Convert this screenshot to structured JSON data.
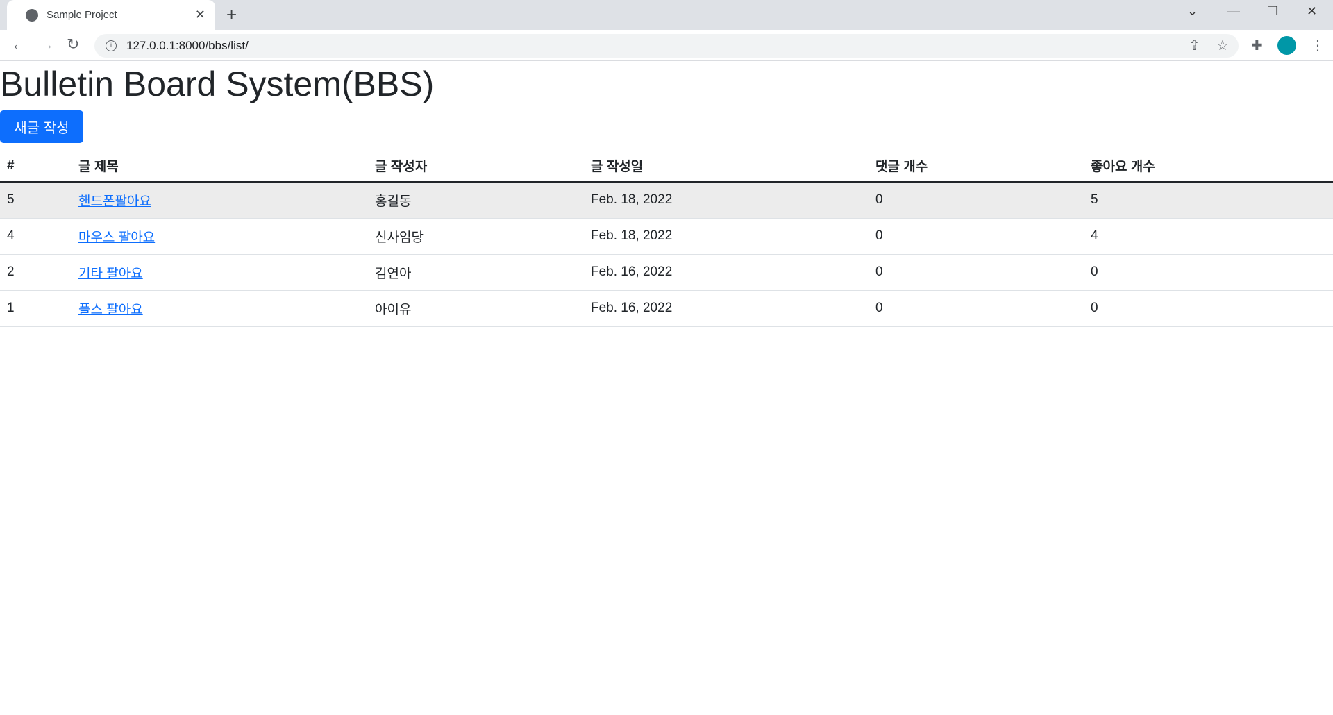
{
  "browser": {
    "tab_title": "Sample Project",
    "url": "127.0.0.1:8000/bbs/list/"
  },
  "page": {
    "title": "Bulletin Board System(BBS)",
    "new_post_button": "새글 작성"
  },
  "table": {
    "headers": [
      "#",
      "글 제목",
      "글 작성자",
      "글 작성일",
      "댓글 개수",
      "좋아요 개수"
    ],
    "rows": [
      {
        "id": "5",
        "title": "핸드폰팔아요",
        "author": "홍길동",
        "date": "Feb. 18, 2022",
        "comments": "0",
        "likes": "5"
      },
      {
        "id": "4",
        "title": "마우스 팔아요",
        "author": "신사임당",
        "date": "Feb. 18, 2022",
        "comments": "0",
        "likes": "4"
      },
      {
        "id": "2",
        "title": "기타 팔아요",
        "author": "김연아",
        "date": "Feb. 16, 2022",
        "comments": "0",
        "likes": "0"
      },
      {
        "id": "1",
        "title": "플스 팔아요",
        "author": "아이유",
        "date": "Feb. 16, 2022",
        "comments": "0",
        "likes": "0"
      }
    ]
  },
  "colors": {
    "primary": "#0d6efd",
    "hover_row": "#ececec"
  }
}
